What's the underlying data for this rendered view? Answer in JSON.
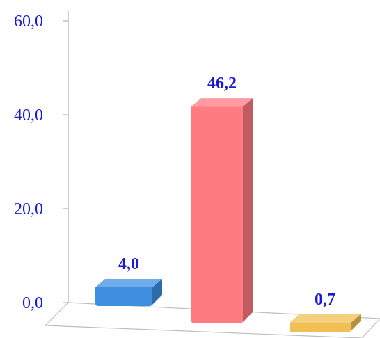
{
  "chart_data": {
    "type": "bar",
    "categories": [
      "",
      "",
      ""
    ],
    "values": [
      4.0,
      46.2,
      0.7
    ],
    "value_labels": [
      "4,0",
      "46,2",
      "0,7"
    ],
    "bar_colors": [
      "#3f8fe0",
      "#ff7b82",
      "#f2bf55"
    ],
    "title": "",
    "xlabel": "",
    "ylabel": "",
    "ylim": [
      0,
      60
    ],
    "yticks": [
      0,
      20,
      40,
      60
    ],
    "ytick_labels": [
      "0,0",
      "20,0",
      "40,0",
      "60,0"
    ],
    "grid": false,
    "legend": false,
    "style": "3d-column"
  }
}
